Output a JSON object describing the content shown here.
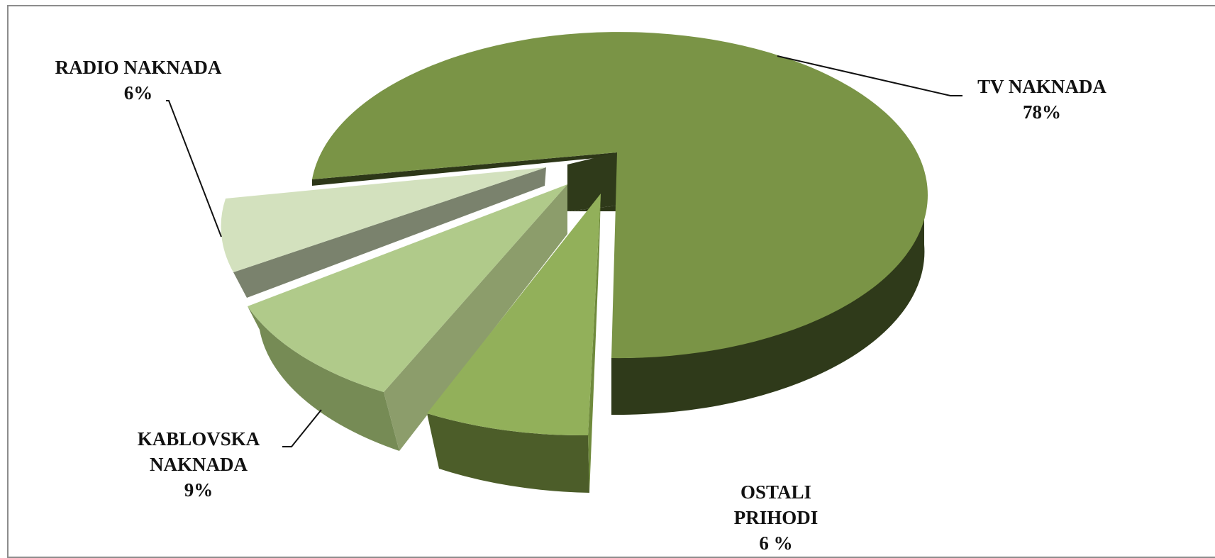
{
  "chart_data": {
    "type": "pie",
    "title": "",
    "three_d": true,
    "exploded": true,
    "slices": [
      {
        "category": "TV NAKNADA",
        "value": 78,
        "label_lines": [
          "TV NAKNADA"
        ],
        "value_label": "78%",
        "color": "#7a9446"
      },
      {
        "category": "OSTALI PRIHODI",
        "value": 6,
        "label_lines": [
          "OSTALI",
          "PRIHODI"
        ],
        "value_label": "6 %",
        "color": "#92b05a"
      },
      {
        "category": "KABLOVSKA NAKNADA",
        "value": 9,
        "label_lines": [
          "KABLOVSKA",
          "NAKNADA"
        ],
        "value_label": "9%",
        "color": "#b0ca8a"
      },
      {
        "category": "RADIO NAKNADA",
        "value": 6,
        "label_lines": [
          "RADIO NAKNADA"
        ],
        "value_label": "6%",
        "color": "#d3e1be"
      }
    ],
    "legend": "none"
  }
}
